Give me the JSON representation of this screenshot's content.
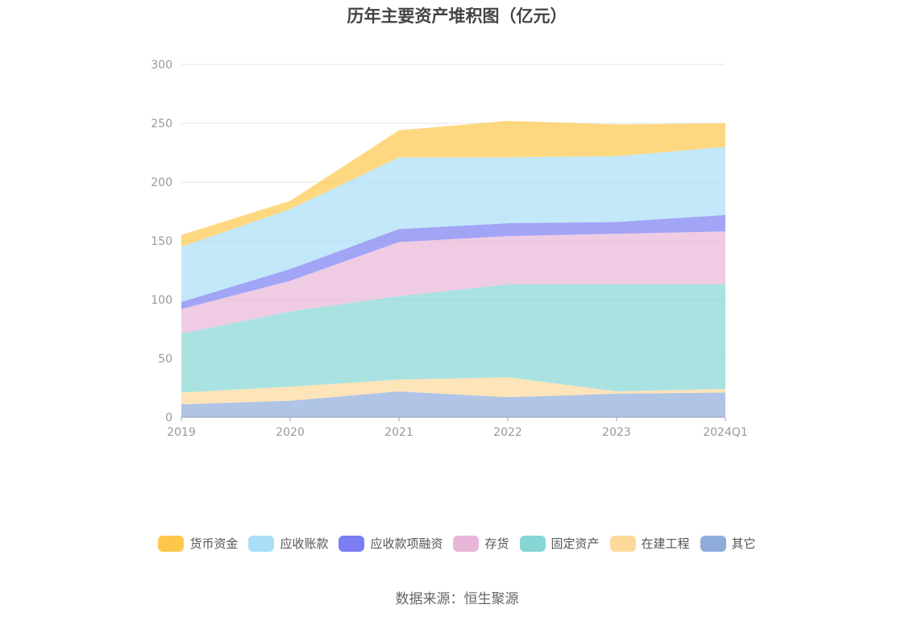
{
  "chart_data": {
    "type": "area",
    "stacked": true,
    "title": "历年主要资产堆积图（亿元）",
    "x": [
      "2019",
      "2020",
      "2021",
      "2022",
      "2023",
      "2024Q1"
    ],
    "ylim": [
      0,
      300
    ],
    "yticks": [
      0,
      50,
      100,
      150,
      200,
      250,
      300
    ],
    "grid": true,
    "legend_position": "bottom",
    "series": [
      {
        "name": "其它",
        "color": "#8fabda",
        "values": [
          11,
          14,
          22,
          17,
          20,
          21
        ]
      },
      {
        "name": "在建工程",
        "color": "#fdd99b",
        "values": [
          10,
          12,
          10,
          17,
          2,
          3
        ]
      },
      {
        "name": "固定资产",
        "color": "#86d6d6",
        "values": [
          50,
          64,
          71,
          79,
          91,
          89
        ]
      },
      {
        "name": "存货",
        "color": "#e8b6d8",
        "values": [
          21,
          26,
          46,
          41,
          43,
          45
        ]
      },
      {
        "name": "应收款项融资",
        "color": "#7b7df2",
        "values": [
          6,
          10,
          11,
          11,
          10,
          14
        ]
      },
      {
        "name": "应收账款",
        "color": "#a8def7",
        "values": [
          47,
          51,
          61,
          56,
          56,
          58
        ]
      },
      {
        "name": "货币资金",
        "color": "#fdc84a",
        "values": [
          10,
          7,
          23,
          31,
          27,
          20
        ]
      }
    ],
    "legend_order": [
      "货币资金",
      "应收账款",
      "应收款项融资",
      "存货",
      "固定资产",
      "在建工程",
      "其它"
    ]
  },
  "source": "数据来源：恒生聚源"
}
